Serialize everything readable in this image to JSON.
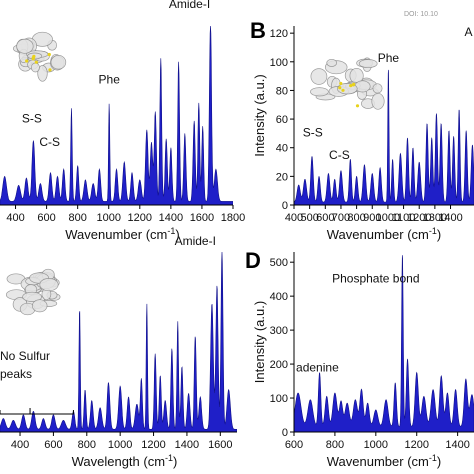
{
  "watermark": "DOI: 10.10",
  "chart_data": [
    {
      "id": "A",
      "type": "area",
      "panel_label": "",
      "xlabel_prefix": "Wavenumber (cm",
      "xlabel_sup": "-1",
      "xlabel_suffix": ")",
      "ylabel": "",
      "xlim": [
        300,
        1800
      ],
      "ylim": [
        0,
        100
      ],
      "xticks": [
        400,
        600,
        800,
        1000,
        1200,
        1400,
        1600,
        1800
      ],
      "yticks": [],
      "baseline": 2,
      "peaks": [
        [
          330,
          14,
          12
        ],
        [
          420,
          9,
          12
        ],
        [
          470,
          13,
          10
        ],
        [
          515,
          34,
          9
        ],
        [
          560,
          10,
          10
        ],
        [
          625,
          16,
          9
        ],
        [
          670,
          14,
          9
        ],
        [
          710,
          18,
          8
        ],
        [
          760,
          52,
          5
        ],
        [
          800,
          20,
          7
        ],
        [
          850,
          12,
          10
        ],
        [
          900,
          10,
          10
        ],
        [
          940,
          18,
          8
        ],
        [
          1003,
          55,
          4
        ],
        [
          1050,
          18,
          8
        ],
        [
          1100,
          22,
          9
        ],
        [
          1150,
          16,
          8
        ],
        [
          1200,
          12,
          10
        ],
        [
          1245,
          40,
          8
        ],
        [
          1275,
          33,
          8
        ],
        [
          1300,
          50,
          7
        ],
        [
          1335,
          80,
          6
        ],
        [
          1370,
          35,
          7
        ],
        [
          1400,
          30,
          7
        ],
        [
          1450,
          78,
          6
        ],
        [
          1490,
          38,
          7
        ],
        [
          1550,
          45,
          7
        ],
        [
          1580,
          55,
          6
        ],
        [
          1605,
          42,
          6
        ],
        [
          1655,
          100,
          7
        ],
        [
          1690,
          18,
          10
        ]
      ],
      "annotations": [
        {
          "text": "S-S",
          "x": 505,
          "y": 46
        },
        {
          "text": "C-S",
          "x": 620,
          "y": 33
        },
        {
          "text": "Phe",
          "x": 1003,
          "y": 68
        },
        {
          "text": "Amide-I",
          "x": 1520,
          "y": 110
        }
      ]
    },
    {
      "id": "B",
      "type": "area",
      "panel_label": "B",
      "xlabel_prefix": "Wavenumber (cm",
      "xlabel_sup": "-1",
      "xlabel_suffix": ")",
      "ylabel": "Intensity (a.u.)",
      "xlim": [
        400,
        1550
      ],
      "ylim": [
        0,
        125
      ],
      "xticks": [
        400,
        500,
        600,
        700,
        800,
        900,
        1000,
        1100,
        1200,
        1300,
        1400
      ],
      "yticks": [
        0,
        20,
        40,
        60,
        80,
        100,
        120
      ],
      "baseline": 2,
      "peaks": [
        [
          430,
          12,
          10
        ],
        [
          470,
          16,
          10
        ],
        [
          515,
          32,
          8
        ],
        [
          560,
          18,
          8
        ],
        [
          620,
          20,
          9
        ],
        [
          660,
          16,
          8
        ],
        [
          700,
          22,
          9
        ],
        [
          760,
          30,
          7
        ],
        [
          800,
          18,
          8
        ],
        [
          850,
          26,
          9
        ],
        [
          900,
          20,
          9
        ],
        [
          950,
          24,
          8
        ],
        [
          1003,
          94,
          4
        ],
        [
          1030,
          30,
          6
        ],
        [
          1080,
          34,
          9
        ],
        [
          1125,
          45,
          7
        ],
        [
          1160,
          38,
          7
        ],
        [
          1200,
          28,
          9
        ],
        [
          1250,
          55,
          7
        ],
        [
          1280,
          45,
          7
        ],
        [
          1310,
          62,
          7
        ],
        [
          1340,
          55,
          7
        ],
        [
          1390,
          50,
          7
        ],
        [
          1420,
          46,
          7
        ],
        [
          1455,
          65,
          6
        ],
        [
          1500,
          50,
          7
        ],
        [
          1540,
          40,
          8
        ]
      ],
      "annotations": [
        {
          "text": "S-S",
          "x": 520,
          "y": 48
        },
        {
          "text": "C-S",
          "x": 690,
          "y": 32
        },
        {
          "text": "Phe",
          "x": 1003,
          "y": 100
        },
        {
          "text": "A",
          "x": 1515,
          "y": 118
        }
      ]
    },
    {
      "id": "C",
      "type": "area",
      "panel_label": "",
      "xlabel_prefix": "Wavelength (cm",
      "xlabel_sup": "-1",
      "xlabel_suffix": ")",
      "ylabel": "",
      "xlim": [
        280,
        1700
      ],
      "ylim": [
        0,
        100
      ],
      "xticks": [
        400,
        600,
        800,
        1000,
        1200,
        1400,
        1600
      ],
      "yticks": [],
      "baseline": 1.5,
      "peaks": [
        [
          300,
          6,
          12
        ],
        [
          360,
          5,
          12
        ],
        [
          420,
          8,
          10
        ],
        [
          480,
          10,
          10
        ],
        [
          540,
          6,
          10
        ],
        [
          600,
          8,
          10
        ],
        [
          660,
          5,
          12
        ],
        [
          720,
          10,
          8
        ],
        [
          757,
          68,
          4
        ],
        [
          790,
          22,
          6
        ],
        [
          830,
          16,
          8
        ],
        [
          880,
          12,
          10
        ],
        [
          930,
          26,
          8
        ],
        [
          1000,
          24,
          9
        ],
        [
          1050,
          18,
          8
        ],
        [
          1100,
          14,
          10
        ],
        [
          1127,
          28,
          6
        ],
        [
          1160,
          70,
          4
        ],
        [
          1210,
          42,
          6
        ],
        [
          1240,
          30,
          6
        ],
        [
          1270,
          16,
          8
        ],
        [
          1310,
          45,
          6
        ],
        [
          1345,
          60,
          5
        ],
        [
          1370,
          35,
          6
        ],
        [
          1410,
          20,
          8
        ],
        [
          1450,
          52,
          6
        ],
        [
          1480,
          18,
          8
        ],
        [
          1550,
          70,
          8
        ],
        [
          1580,
          80,
          7
        ],
        [
          1610,
          100,
          6
        ],
        [
          1650,
          22,
          10
        ]
      ],
      "annotations": [
        {
          "text": "Amide-I",
          "x": 1450,
          "y": 104
        },
        {
          "text": "No Sulfur",
          "x": 280,
          "y": 40
        },
        {
          "text": "peaks",
          "x": 280,
          "y": 30
        }
      ],
      "bracket": {
        "from": 280,
        "to": 720,
        "y": 10
      }
    },
    {
      "id": "D",
      "type": "area",
      "panel_label": "D",
      "xlabel_prefix": "Wavenumber (cm",
      "xlabel_sup": "-1",
      "xlabel_suffix": ")",
      "ylabel": "Intensity (a.u.)",
      "xlim": [
        600,
        1480
      ],
      "ylim": [
        0,
        530
      ],
      "xticks": [
        600,
        800,
        1000,
        1200,
        1400
      ],
      "yticks": [
        0,
        100,
        200,
        300,
        400,
        500
      ],
      "baseline": 15,
      "peaks": [
        [
          620,
          100,
          14
        ],
        [
          680,
          80,
          12
        ],
        [
          725,
          160,
          6
        ],
        [
          760,
          90,
          8
        ],
        [
          800,
          100,
          10
        ],
        [
          830,
          75,
          8
        ],
        [
          860,
          70,
          10
        ],
        [
          900,
          80,
          10
        ],
        [
          930,
          110,
          8
        ],
        [
          960,
          70,
          8
        ],
        [
          1000,
          50,
          10
        ],
        [
          1050,
          80,
          10
        ],
        [
          1095,
          130,
          6
        ],
        [
          1130,
          510,
          4
        ],
        [
          1155,
          200,
          6
        ],
        [
          1200,
          160,
          8
        ],
        [
          1235,
          90,
          10
        ],
        [
          1280,
          110,
          10
        ],
        [
          1320,
          150,
          8
        ],
        [
          1350,
          100,
          8
        ],
        [
          1390,
          110,
          8
        ],
        [
          1440,
          140,
          8
        ],
        [
          1470,
          95,
          10
        ]
      ],
      "annotations": [
        {
          "text": "Phosphate bond",
          "x": 1000,
          "y": 440
        },
        {
          "text": "adenine",
          "x": 610,
          "y": 178
        }
      ]
    }
  ]
}
